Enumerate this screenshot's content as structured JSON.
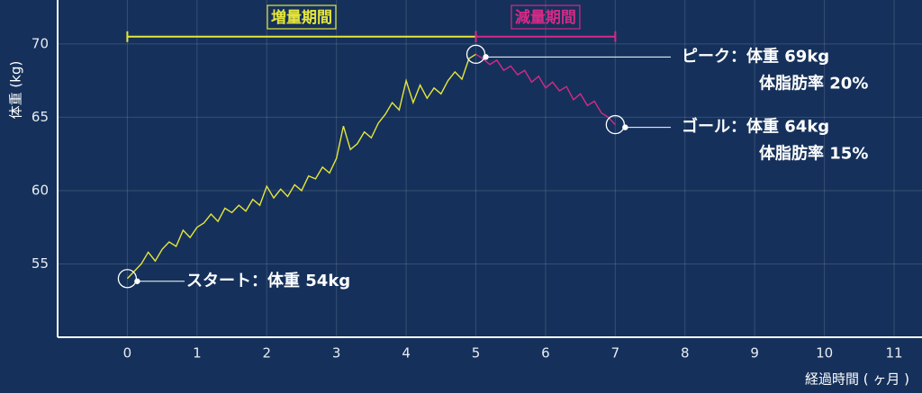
{
  "chart_data": {
    "type": "line",
    "y_label": "体重 (kg)",
    "x_label": "経過時間 ( ヶ月 )",
    "xlim": [
      -1,
      11.4
    ],
    "ylim": [
      50,
      73
    ],
    "xticks": [
      0,
      1,
      2,
      3,
      4,
      5,
      6,
      7,
      8,
      9,
      10,
      11
    ],
    "yticks": [
      55,
      60,
      65,
      70
    ],
    "grid": true,
    "series": [
      {
        "name": "増量期間",
        "color": "#e6e63a",
        "x": [
          0,
          0.1,
          0.2,
          0.3,
          0.4,
          0.5,
          0.6,
          0.7,
          0.8,
          0.9,
          1.0,
          1.1,
          1.2,
          1.3,
          1.4,
          1.5,
          1.6,
          1.7,
          1.8,
          1.9,
          2.0,
          2.1,
          2.2,
          2.3,
          2.4,
          2.5,
          2.6,
          2.7,
          2.8,
          2.9,
          3.0,
          3.1,
          3.2,
          3.3,
          3.4,
          3.5,
          3.6,
          3.7,
          3.8,
          3.9,
          4.0,
          4.1,
          4.2,
          4.3,
          4.4,
          4.5,
          4.6,
          4.7,
          4.8,
          4.9,
          5.0
        ],
        "values": [
          54.0,
          54.5,
          55.0,
          55.8,
          55.2,
          56.0,
          56.5,
          56.2,
          57.3,
          56.8,
          57.5,
          57.8,
          58.4,
          57.9,
          58.8,
          58.5,
          59.0,
          58.6,
          59.4,
          59.0,
          60.3,
          59.5,
          60.1,
          59.6,
          60.4,
          60.0,
          61.0,
          60.8,
          61.6,
          61.2,
          62.2,
          64.4,
          62.8,
          63.2,
          64.0,
          63.6,
          64.6,
          65.2,
          66.0,
          65.5,
          67.5,
          66.0,
          67.2,
          66.3,
          67.0,
          66.6,
          67.5,
          68.1,
          67.6,
          69.0,
          69.3
        ]
      },
      {
        "name": "減量期間",
        "color": "#d42a86",
        "x": [
          5.0,
          5.1,
          5.2,
          5.3,
          5.4,
          5.5,
          5.6,
          5.7,
          5.8,
          5.9,
          6.0,
          6.1,
          6.2,
          6.3,
          6.4,
          6.5,
          6.6,
          6.7,
          6.8,
          6.9,
          7.0
        ],
        "values": [
          69.3,
          69.0,
          68.6,
          68.9,
          68.2,
          68.5,
          67.9,
          68.2,
          67.4,
          67.8,
          67.0,
          67.4,
          66.8,
          67.1,
          66.2,
          66.6,
          65.8,
          66.1,
          65.3,
          65.0,
          64.5
        ]
      }
    ],
    "phases": [
      {
        "label": "増量期間",
        "start": 0,
        "end": 5,
        "color": "#e6e63a"
      },
      {
        "label": "減量期間",
        "start": 5,
        "end": 7,
        "color": "#d42a86"
      }
    ],
    "annotations": [
      {
        "x": 0,
        "y": 54,
        "lines": [
          "スタート：体重 54kg"
        ]
      },
      {
        "x": 5,
        "y": 69.3,
        "lines": [
          "ピーク：体重 69kg",
          "体脂肪率 20%"
        ]
      },
      {
        "x": 7,
        "y": 64.5,
        "lines": [
          "ゴール：体重 64kg",
          "体脂肪率 15%"
        ]
      }
    ]
  }
}
